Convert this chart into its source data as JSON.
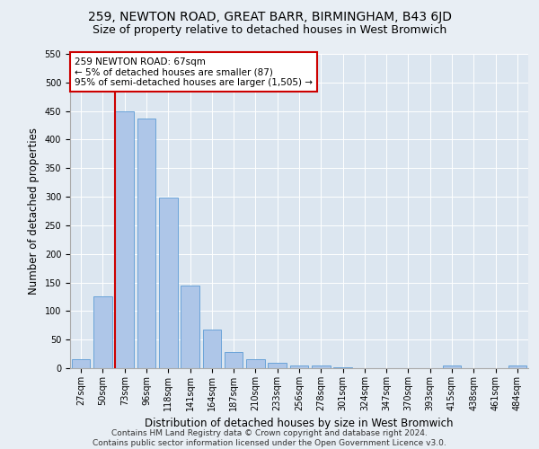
{
  "title": "259, NEWTON ROAD, GREAT BARR, BIRMINGHAM, B43 6JD",
  "subtitle": "Size of property relative to detached houses in West Bromwich",
  "xlabel": "Distribution of detached houses by size in West Bromwich",
  "ylabel": "Number of detached properties",
  "categories": [
    "27sqm",
    "50sqm",
    "73sqm",
    "96sqm",
    "118sqm",
    "141sqm",
    "164sqm",
    "187sqm",
    "210sqm",
    "233sqm",
    "256sqm",
    "278sqm",
    "301sqm",
    "324sqm",
    "347sqm",
    "370sqm",
    "393sqm",
    "415sqm",
    "438sqm",
    "461sqm",
    "484sqm"
  ],
  "values": [
    15,
    125,
    450,
    437,
    298,
    145,
    68,
    29,
    16,
    9,
    4,
    5,
    1,
    0,
    0,
    0,
    0,
    4,
    0,
    0,
    5
  ],
  "bar_color": "#aec6e8",
  "bar_edge_color": "#5b9bd5",
  "vline_color": "#cc0000",
  "annotation_text": "259 NEWTON ROAD: 67sqm\n← 5% of detached houses are smaller (87)\n95% of semi-detached houses are larger (1,505) →",
  "annotation_box_color": "#ffffff",
  "annotation_box_edge_color": "#cc0000",
  "ylim": [
    0,
    550
  ],
  "yticks": [
    0,
    50,
    100,
    150,
    200,
    250,
    300,
    350,
    400,
    450,
    500,
    550
  ],
  "bg_color": "#e8eef4",
  "plot_bg_color": "#dce6f0",
  "footer": "Contains HM Land Registry data © Crown copyright and database right 2024.\nContains public sector information licensed under the Open Government Licence v3.0.",
  "title_fontsize": 10,
  "subtitle_fontsize": 9,
  "xlabel_fontsize": 8.5,
  "ylabel_fontsize": 8.5,
  "tick_fontsize": 7,
  "footer_fontsize": 6.5,
  "annotation_fontsize": 7.5
}
